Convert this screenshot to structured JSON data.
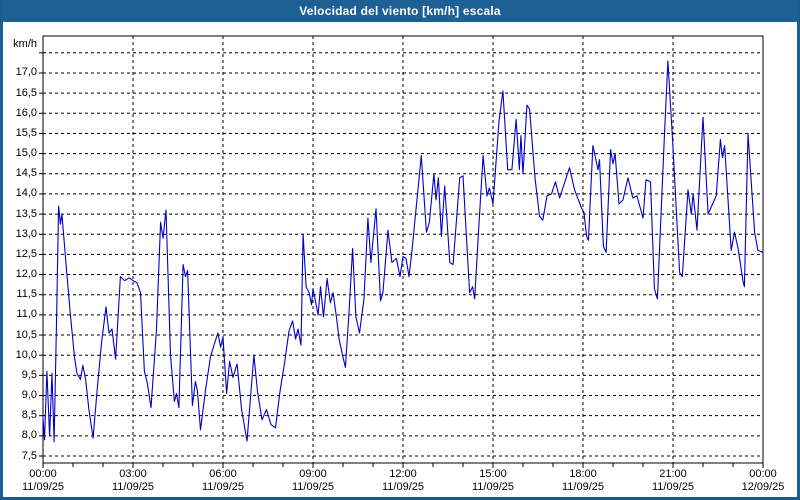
{
  "window": {
    "title": "Velocidad del viento [km/h] escala"
  },
  "colors": {
    "titlebar_bg": "#1d6094",
    "window_border": "#1e5c8e",
    "line": "#0000cc",
    "grid": "#000000",
    "frame": "#000000",
    "plot_bg": "#ffffff",
    "text": "#000000"
  },
  "chart_data": {
    "type": "line",
    "title": "Velocidad del viento [km/h] escala",
    "ylabel": "km/h",
    "xlabel": "",
    "ylim": [
      7.5,
      17.5
    ],
    "y_tick_step": 0.5,
    "grid": true,
    "legend": "none",
    "y_tick_labels": [
      "17,0",
      "16,5",
      "16,0",
      "15,5",
      "15,0",
      "14,5",
      "14,0",
      "13,5",
      "13,0",
      "12,5",
      "12,0",
      "11,5",
      "11,0",
      "10,5",
      "10,0",
      "9,5",
      "9,0",
      "8,5",
      "8,0",
      "7,5"
    ],
    "x_ticks": [
      {
        "t": 0,
        "time": "00:00",
        "date": "11/09/25"
      },
      {
        "t": 3,
        "time": "03:00",
        "date": "11/09/25"
      },
      {
        "t": 6,
        "time": "06:00",
        "date": "11/09/25"
      },
      {
        "t": 9,
        "time": "09:00",
        "date": "11/09/25"
      },
      {
        "t": 12,
        "time": "12:00",
        "date": "11/09/25"
      },
      {
        "t": 15,
        "time": "15:00",
        "date": "11/09/25"
      },
      {
        "t": 18,
        "time": "18:00",
        "date": "11/09/25"
      },
      {
        "t": 21,
        "time": "21:00",
        "date": "11/09/25"
      },
      {
        "t": 24,
        "time": "00:00",
        "date": "12/09/25"
      }
    ],
    "series": [
      {
        "name": "Velocidad del viento",
        "unit": "km/h",
        "color": "#0000cc",
        "points": [
          [
            0.0,
            8.45
          ],
          [
            0.05,
            7.9
          ],
          [
            0.13,
            9.6
          ],
          [
            0.22,
            8.0
          ],
          [
            0.3,
            9.55
          ],
          [
            0.37,
            7.85
          ],
          [
            0.45,
            10.8
          ],
          [
            0.52,
            13.7
          ],
          [
            0.58,
            13.25
          ],
          [
            0.63,
            13.5
          ],
          [
            0.78,
            12.15
          ],
          [
            0.92,
            10.95
          ],
          [
            1.05,
            9.95
          ],
          [
            1.13,
            9.55
          ],
          [
            1.25,
            9.4
          ],
          [
            1.33,
            9.75
          ],
          [
            1.42,
            9.4
          ],
          [
            1.53,
            8.65
          ],
          [
            1.67,
            7.95
          ],
          [
            1.8,
            9.1
          ],
          [
            1.95,
            10.3
          ],
          [
            2.1,
            11.2
          ],
          [
            2.2,
            10.55
          ],
          [
            2.3,
            10.65
          ],
          [
            2.42,
            9.9
          ],
          [
            2.58,
            11.95
          ],
          [
            2.72,
            11.85
          ],
          [
            2.87,
            11.92
          ],
          [
            3.0,
            11.85
          ],
          [
            3.13,
            11.8
          ],
          [
            3.25,
            11.55
          ],
          [
            3.38,
            9.6
          ],
          [
            3.48,
            9.3
          ],
          [
            3.6,
            8.7
          ],
          [
            3.78,
            10.6
          ],
          [
            3.92,
            13.3
          ],
          [
            4.0,
            12.9
          ],
          [
            4.1,
            13.6
          ],
          [
            4.25,
            10.0
          ],
          [
            4.38,
            8.85
          ],
          [
            4.45,
            9.05
          ],
          [
            4.53,
            8.7
          ],
          [
            4.67,
            12.25
          ],
          [
            4.75,
            11.95
          ],
          [
            4.82,
            12.1
          ],
          [
            4.98,
            8.75
          ],
          [
            5.08,
            9.35
          ],
          [
            5.15,
            9.1
          ],
          [
            5.25,
            8.15
          ],
          [
            5.42,
            9.15
          ],
          [
            5.58,
            9.95
          ],
          [
            5.72,
            10.3
          ],
          [
            5.83,
            10.55
          ],
          [
            5.92,
            10.2
          ],
          [
            6.0,
            10.45
          ],
          [
            6.12,
            9.05
          ],
          [
            6.22,
            9.85
          ],
          [
            6.33,
            9.45
          ],
          [
            6.47,
            9.78
          ],
          [
            6.62,
            8.65
          ],
          [
            6.8,
            7.87
          ],
          [
            7.03,
            10.0
          ],
          [
            7.15,
            9.1
          ],
          [
            7.3,
            8.4
          ],
          [
            7.45,
            8.65
          ],
          [
            7.6,
            8.28
          ],
          [
            7.75,
            8.2
          ],
          [
            7.9,
            9.1
          ],
          [
            8.05,
            9.8
          ],
          [
            8.2,
            10.6
          ],
          [
            8.32,
            10.85
          ],
          [
            8.42,
            10.4
          ],
          [
            8.5,
            10.65
          ],
          [
            8.6,
            10.25
          ],
          [
            8.67,
            13.0
          ],
          [
            8.77,
            11.7
          ],
          [
            8.87,
            11.55
          ],
          [
            8.95,
            11.25
          ],
          [
            9.0,
            11.65
          ],
          [
            9.08,
            11.35
          ],
          [
            9.17,
            11.0
          ],
          [
            9.25,
            11.7
          ],
          [
            9.35,
            10.95
          ],
          [
            9.47,
            11.9
          ],
          [
            9.58,
            11.3
          ],
          [
            9.67,
            11.55
          ],
          [
            9.78,
            10.95
          ],
          [
            9.87,
            10.4
          ],
          [
            10.0,
            9.95
          ],
          [
            10.08,
            9.7
          ],
          [
            10.2,
            11.05
          ],
          [
            10.32,
            12.65
          ],
          [
            10.43,
            10.95
          ],
          [
            10.55,
            10.55
          ],
          [
            10.7,
            11.4
          ],
          [
            10.83,
            13.4
          ],
          [
            10.93,
            12.3
          ],
          [
            11.1,
            13.63
          ],
          [
            11.25,
            11.35
          ],
          [
            11.33,
            11.55
          ],
          [
            11.5,
            13.1
          ],
          [
            11.63,
            12.3
          ],
          [
            11.78,
            12.4
          ],
          [
            11.9,
            11.95
          ],
          [
            12.0,
            12.45
          ],
          [
            12.1,
            12.4
          ],
          [
            12.2,
            11.95
          ],
          [
            12.3,
            12.6
          ],
          [
            12.61,
            14.95
          ],
          [
            12.78,
            13.05
          ],
          [
            12.88,
            13.3
          ],
          [
            13.03,
            14.5
          ],
          [
            13.1,
            13.85
          ],
          [
            13.18,
            14.4
          ],
          [
            13.28,
            12.95
          ],
          [
            13.39,
            14.2
          ],
          [
            13.56,
            12.3
          ],
          [
            13.67,
            12.25
          ],
          [
            13.89,
            14.4
          ],
          [
            14.0,
            14.45
          ],
          [
            14.22,
            11.55
          ],
          [
            14.32,
            11.7
          ],
          [
            14.39,
            11.4
          ],
          [
            14.52,
            13.1
          ],
          [
            14.67,
            14.95
          ],
          [
            14.8,
            13.95
          ],
          [
            14.88,
            14.15
          ],
          [
            15.0,
            13.75
          ],
          [
            15.2,
            15.8
          ],
          [
            15.33,
            16.55
          ],
          [
            15.49,
            14.6
          ],
          [
            15.63,
            14.6
          ],
          [
            15.77,
            15.85
          ],
          [
            15.88,
            14.6
          ],
          [
            15.93,
            15.45
          ],
          [
            16.0,
            14.5
          ],
          [
            16.13,
            16.2
          ],
          [
            16.22,
            16.1
          ],
          [
            16.4,
            14.4
          ],
          [
            16.55,
            13.45
          ],
          [
            16.66,
            13.35
          ],
          [
            16.8,
            13.95
          ],
          [
            16.95,
            14.0
          ],
          [
            17.08,
            14.3
          ],
          [
            17.22,
            13.9
          ],
          [
            17.55,
            14.65
          ],
          [
            17.72,
            14.1
          ],
          [
            17.95,
            13.65
          ],
          [
            18.03,
            13.55
          ],
          [
            18.12,
            12.95
          ],
          [
            18.18,
            12.85
          ],
          [
            18.33,
            15.2
          ],
          [
            18.5,
            14.6
          ],
          [
            18.55,
            14.85
          ],
          [
            18.68,
            12.7
          ],
          [
            18.77,
            12.55
          ],
          [
            18.92,
            15.1
          ],
          [
            19.0,
            14.75
          ],
          [
            19.07,
            15.0
          ],
          [
            19.2,
            13.75
          ],
          [
            19.33,
            13.85
          ],
          [
            19.5,
            14.4
          ],
          [
            19.66,
            13.9
          ],
          [
            19.8,
            13.95
          ],
          [
            20.0,
            13.4
          ],
          [
            20.1,
            14.35
          ],
          [
            20.25,
            14.3
          ],
          [
            20.38,
            11.65
          ],
          [
            20.48,
            11.4
          ],
          [
            20.72,
            15.55
          ],
          [
            20.83,
            17.3
          ],
          [
            21.0,
            15.15
          ],
          [
            21.22,
            12.05
          ],
          [
            21.31,
            11.95
          ],
          [
            21.5,
            14.1
          ],
          [
            21.61,
            13.5
          ],
          [
            21.67,
            14.0
          ],
          [
            21.8,
            13.1
          ],
          [
            22.0,
            15.9
          ],
          [
            22.17,
            13.5
          ],
          [
            22.44,
            13.95
          ],
          [
            22.58,
            15.35
          ],
          [
            22.65,
            14.9
          ],
          [
            22.72,
            15.2
          ],
          [
            22.94,
            12.6
          ],
          [
            23.05,
            13.05
          ],
          [
            23.17,
            12.65
          ],
          [
            23.33,
            11.85
          ],
          [
            23.38,
            11.7
          ],
          [
            23.5,
            15.5
          ],
          [
            23.72,
            13.05
          ],
          [
            23.83,
            12.6
          ],
          [
            24.0,
            12.55
          ]
        ]
      }
    ]
  }
}
